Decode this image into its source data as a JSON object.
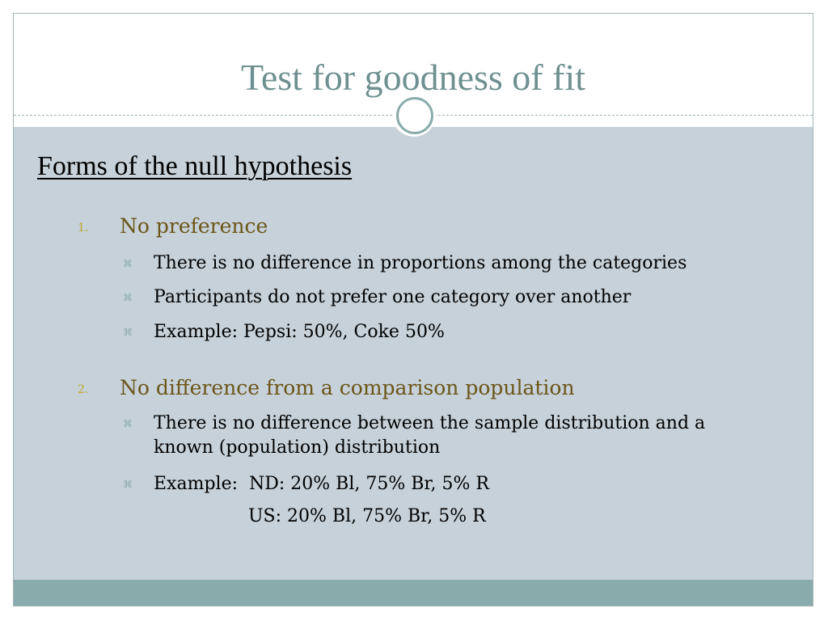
{
  "slide": {
    "title": "Test for goodness of fit",
    "heading": "Forms of the null hypothesis",
    "items": [
      {
        "number": "1.",
        "label": "No preference",
        "bullets": [
          "There is no difference in proportions among the categories",
          "Participants do not prefer one category over another",
          "Example: Pepsi: 50%, Coke 50%"
        ]
      },
      {
        "number": "2.",
        "label": "No difference from a comparison population",
        "bullets": [
          "There is no difference between the sample distribution and a known (population) distribution",
          "Example:  ND: 20% Bl, 75% Br, 5% R"
        ],
        "continuation": "US: 20% Bl, 75% Br, 5% R"
      }
    ],
    "bullet_glyph": "⌘",
    "colors": {
      "title": "#6f9090",
      "body_background": "#c6d1d9",
      "accent": "#8aabab",
      "level1_text": "#6b5518",
      "number": "#c1a72a"
    }
  }
}
